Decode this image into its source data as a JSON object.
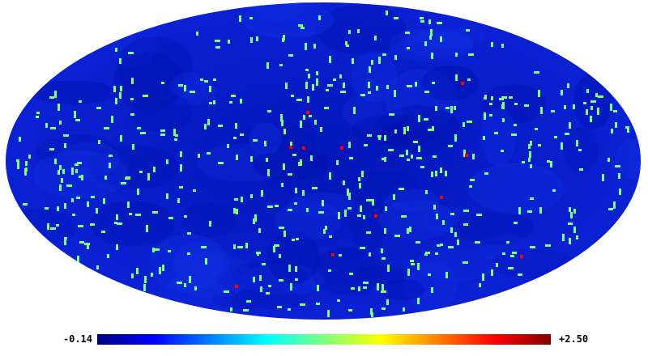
{
  "colorbar": {
    "min_label": "-0.14",
    "max_label": "+2.50",
    "min_value": -0.14,
    "max_value": 2.5,
    "colormap": [
      "#00007f",
      "#0000ff",
      "#007fff",
      "#00ffff",
      "#7fff7f",
      "#ffff00",
      "#ff7f00",
      "#ff0000",
      "#7f0000"
    ]
  },
  "map": {
    "projection": "mollweide",
    "background_color": "#0b1fd0",
    "source_color": "#7fff7f",
    "bright_source_color": "#ff0000",
    "source_value": 1.2,
    "bright_source_value": 2.5
  }
}
